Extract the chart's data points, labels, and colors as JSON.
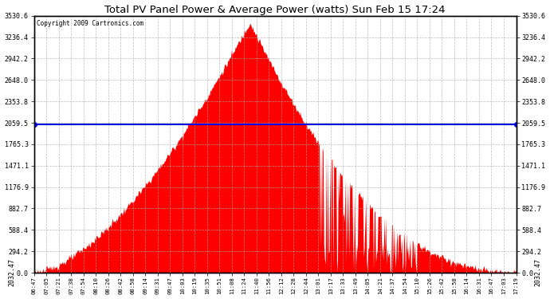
{
  "title": "Total PV Panel Power & Average Power (watts) Sun Feb 15 17:24",
  "copyright": "Copyright 2009 Cartronics.com",
  "average_power": 2032.47,
  "ymax": 3530.6,
  "yticks": [
    0.0,
    294.2,
    588.4,
    882.7,
    1176.9,
    1471.1,
    1765.3,
    2059.5,
    2353.8,
    2648.0,
    2942.2,
    3236.4,
    3530.6
  ],
  "fill_color": "#FF0000",
  "line_color": "#0000DD",
  "background_color": "#FFFFFF",
  "grid_color": "#AAAAAA",
  "title_color": "#000000",
  "avg_label": "2032.47",
  "time_labels": [
    "06:47",
    "07:05",
    "07:21",
    "07:38",
    "07:54",
    "08:10",
    "08:26",
    "08:42",
    "08:58",
    "09:14",
    "09:31",
    "09:47",
    "10:03",
    "10:19",
    "10:35",
    "10:51",
    "11:08",
    "11:24",
    "11:40",
    "11:56",
    "12:12",
    "12:28",
    "12:44",
    "13:01",
    "13:17",
    "13:33",
    "13:49",
    "14:05",
    "14:21",
    "14:37",
    "14:54",
    "15:10",
    "15:26",
    "15:42",
    "15:58",
    "16:14",
    "16:31",
    "16:47",
    "17:03",
    "17:19"
  ],
  "figwidth": 6.9,
  "figheight": 3.75,
  "dpi": 100
}
